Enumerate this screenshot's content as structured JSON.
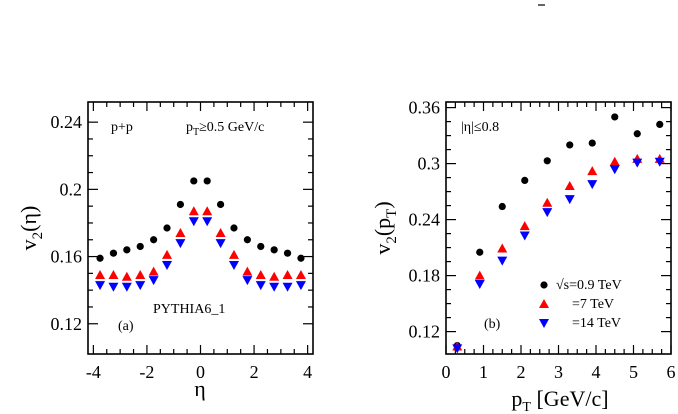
{
  "chart_data": [
    {
      "type": "scatter",
      "panel_label": "(a)",
      "xlabel": "η",
      "ylabel_main": "v",
      "ylabel_sub": "2",
      "ylabel_arg": "(η)",
      "xlim": [
        -4.2,
        4.2
      ],
      "ylim": [
        0.102,
        0.252
      ],
      "xticks": [
        -4,
        -2,
        0,
        2,
        4
      ],
      "xtick_labels": [
        "-4",
        "-2",
        "0",
        "2",
        "4"
      ],
      "yticks": [
        0.12,
        0.16,
        0.2,
        0.24
      ],
      "ytick_labels": [
        "0.12",
        "0.16",
        "0.2",
        "0.24"
      ],
      "annotations": {
        "system": "p+p",
        "cut_prefix": "p",
        "cut_sub": "T",
        "cut_suffix": "≥0.5 GeV/c",
        "model": "PYTHIA6_1"
      },
      "x": [
        -3.75,
        -3.25,
        -2.75,
        -2.25,
        -1.75,
        -1.25,
        -0.75,
        -0.25,
        0.25,
        0.75,
        1.25,
        1.75,
        2.25,
        2.75,
        3.25,
        3.75
      ],
      "series": [
        {
          "name": "√s=0.9 TeV",
          "color": "#000000",
          "marker": "circle",
          "values": [
            0.159,
            0.162,
            0.164,
            0.166,
            0.17,
            0.177,
            0.191,
            0.205,
            0.205,
            0.191,
            0.177,
            0.17,
            0.166,
            0.164,
            0.162,
            0.159
          ]
        },
        {
          "name": "=7 TeV",
          "color": "#ff0000",
          "marker": "triangle-up",
          "values": [
            0.149,
            0.149,
            0.148,
            0.149,
            0.151,
            0.161,
            0.174,
            0.187,
            0.187,
            0.174,
            0.161,
            0.151,
            0.149,
            0.148,
            0.149,
            0.149
          ]
        },
        {
          "name": "=14 TeV",
          "color": "#0000ff",
          "marker": "triangle-down",
          "values": [
            0.143,
            0.142,
            0.142,
            0.143,
            0.146,
            0.155,
            0.168,
            0.181,
            0.181,
            0.168,
            0.155,
            0.146,
            0.143,
            0.142,
            0.142,
            0.143
          ]
        }
      ]
    },
    {
      "type": "scatter",
      "panel_label": "(b)",
      "xlabel_main": "p",
      "xlabel_sub": "T",
      "xlabel_unit": " [GeV/c]",
      "ylabel_main": "v",
      "ylabel_sub": "2",
      "ylabel_arg": "(p",
      "ylabel_argsub": "T",
      "ylabel_close": ")",
      "xlim": [
        0,
        6
      ],
      "ylim": [
        0.096,
        0.366
      ],
      "xticks": [
        0,
        1,
        2,
        3,
        4,
        5,
        6
      ],
      "xtick_labels": [
        "0",
        "1",
        "2",
        "3",
        "4",
        "5",
        "6"
      ],
      "yticks": [
        0.12,
        0.18,
        0.24,
        0.3,
        0.36
      ],
      "ytick_labels": [
        "0.12",
        "0.18",
        "0.24",
        "0.3",
        "0.36"
      ],
      "annotations": {
        "eta_cut": "|η|≤0.8"
      },
      "legend": {
        "placement": "bottom-right",
        "entries": [
          "√s=0.9 TeV",
          "=7 TeV",
          "=14 TeV"
        ]
      },
      "x": [
        0.3,
        0.9,
        1.5,
        2.1,
        2.7,
        3.3,
        3.9,
        4.5,
        5.1,
        5.7
      ],
      "series": [
        {
          "name": "√s=0.9 TeV",
          "color": "#000000",
          "marker": "circle",
          "values": [
            0.105,
            0.205,
            0.254,
            0.282,
            0.303,
            0.32,
            0.322,
            0.35,
            0.332,
            0.342
          ]
        },
        {
          "name": "=7 TeV",
          "color": "#ff0000",
          "marker": "triangle-up",
          "values": [
            0.104,
            0.18,
            0.209,
            0.233,
            0.258,
            0.276,
            0.292,
            0.302,
            0.305,
            0.305
          ]
        },
        {
          "name": "=14 TeV",
          "color": "#0000ff",
          "marker": "triangle-down",
          "values": [
            0.102,
            0.171,
            0.196,
            0.223,
            0.248,
            0.262,
            0.278,
            0.294,
            0.301,
            0.302
          ]
        }
      ]
    }
  ]
}
